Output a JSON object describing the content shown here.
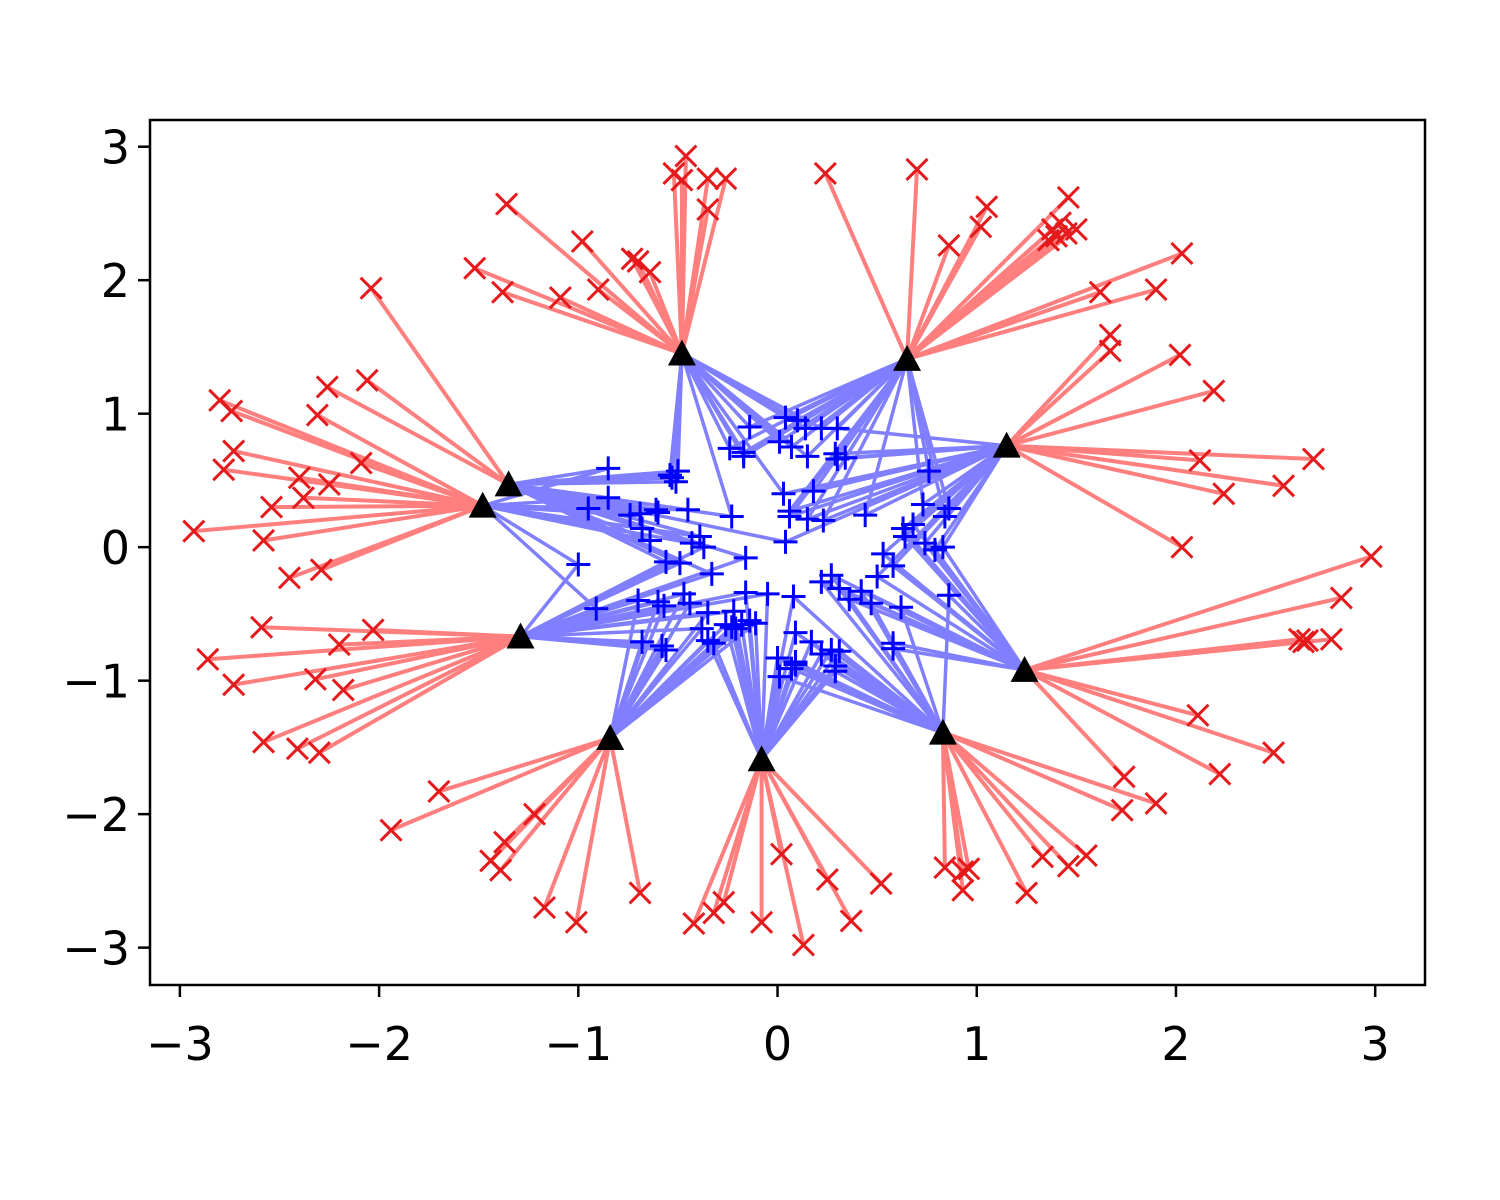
{
  "chart_data": {
    "type": "scatter",
    "title": "",
    "xlabel": "",
    "ylabel": "",
    "xlim": [
      -3.15,
      3.25
    ],
    "ylim": [
      -3.28,
      3.2
    ],
    "x_ticks": [
      -3,
      -2,
      -1,
      0,
      1,
      2,
      3
    ],
    "y_ticks": [
      -3,
      -2,
      -1,
      0,
      1,
      2,
      3
    ],
    "x_tick_labels": [
      "−3",
      "−2",
      "−1",
      "0",
      "1",
      "2",
      "3"
    ],
    "y_tick_labels": [
      "−3",
      "−2",
      "−1",
      "0",
      "1",
      "2",
      "3"
    ],
    "grid": false,
    "legend": "none",
    "colors": {
      "outer_marker": "#e41a1c",
      "outer_edge": "#ff7f7f",
      "inner_marker": "#0000ff",
      "inner_edge": "#7f7fff",
      "center_marker": "#000000"
    },
    "series": [
      {
        "marker": "triangle",
        "values": [
          [
            -0.48,
            1.45
          ],
          [
            0.65,
            1.41
          ],
          [
            1.15,
            0.76
          ],
          [
            1.24,
            -0.92
          ],
          [
            0.83,
            -1.39
          ],
          [
            -0.08,
            -1.59
          ],
          [
            -0.84,
            -1.43
          ],
          [
            -1.29,
            -0.67
          ],
          [
            -1.48,
            0.31
          ],
          [
            -1.35,
            0.47
          ]
        ]
      },
      {
        "marker": "x",
        "values": [
          [
            -0.46,
            2.93
          ],
          [
            -0.52,
            2.8
          ],
          [
            -0.48,
            2.75
          ],
          [
            -0.35,
            2.76
          ],
          [
            -0.26,
            2.76
          ],
          [
            -0.35,
            2.53
          ],
          [
            -0.7,
            2.14
          ],
          [
            -0.73,
            2.16
          ],
          [
            -0.64,
            2.06
          ],
          [
            -0.98,
            2.29
          ],
          [
            -0.9,
            1.93
          ],
          [
            -1.09,
            1.87
          ],
          [
            0.24,
            2.8
          ],
          [
            0.7,
            2.83
          ],
          [
            0.86,
            2.26
          ],
          [
            1.05,
            2.55
          ],
          [
            1.02,
            2.4
          ],
          [
            1.46,
            2.62
          ],
          [
            1.38,
            2.38
          ],
          [
            1.4,
            2.33
          ],
          [
            1.5,
            2.38
          ],
          [
            1.42,
            2.43
          ],
          [
            1.36,
            2.3
          ],
          [
            1.45,
            2.35
          ],
          [
            2.03,
            2.2
          ],
          [
            1.62,
            1.91
          ],
          [
            1.9,
            1.93
          ],
          [
            1.67,
            1.59
          ],
          [
            1.67,
            1.47
          ],
          [
            2.02,
            1.44
          ],
          [
            2.19,
            1.17
          ],
          [
            2.69,
            0.66
          ],
          [
            2.12,
            0.65
          ],
          [
            2.54,
            0.46
          ],
          [
            2.24,
            0.4
          ],
          [
            2.03,
            0.0
          ],
          [
            2.98,
            -0.07
          ],
          [
            2.83,
            -0.38
          ],
          [
            2.78,
            -0.69
          ],
          [
            2.64,
            -0.71
          ],
          [
            2.66,
            -0.7
          ],
          [
            2.62,
            -0.69
          ],
          [
            2.11,
            -1.26
          ],
          [
            2.49,
            -1.54
          ],
          [
            2.22,
            -1.7
          ],
          [
            1.74,
            -1.72
          ],
          [
            1.73,
            -1.97
          ],
          [
            1.9,
            -1.92
          ],
          [
            1.55,
            -2.31
          ],
          [
            1.46,
            -2.39
          ],
          [
            1.33,
            -2.32
          ],
          [
            1.25,
            -2.59
          ],
          [
            0.96,
            -2.41
          ],
          [
            0.93,
            -2.43
          ],
          [
            0.93,
            -2.57
          ],
          [
            0.84,
            -2.4
          ],
          [
            0.52,
            -2.52
          ],
          [
            0.37,
            -2.8
          ],
          [
            0.25,
            -2.49
          ],
          [
            0.13,
            -2.98
          ],
          [
            0.02,
            -2.3
          ],
          [
            -0.08,
            -2.81
          ],
          [
            -0.27,
            -2.66
          ],
          [
            -0.32,
            -2.74
          ],
          [
            -0.42,
            -2.82
          ],
          [
            -0.69,
            -2.59
          ],
          [
            -1.01,
            -2.81
          ],
          [
            -1.17,
            -2.7
          ],
          [
            -1.22,
            -2.0
          ],
          [
            -1.37,
            -2.21
          ],
          [
            -1.44,
            -2.35
          ],
          [
            -1.39,
            -2.42
          ],
          [
            -1.94,
            -2.12
          ],
          [
            -1.7,
            -1.83
          ],
          [
            -2.3,
            -1.54
          ],
          [
            -2.41,
            -1.51
          ],
          [
            -2.58,
            -1.46
          ],
          [
            -2.73,
            -1.03
          ],
          [
            -2.86,
            -0.84
          ],
          [
            -2.18,
            -1.07
          ],
          [
            -2.32,
            -0.99
          ],
          [
            -2.2,
            -0.73
          ],
          [
            -2.03,
            -0.62
          ],
          [
            -2.59,
            -0.6
          ],
          [
            -2.45,
            -0.23
          ],
          [
            -2.29,
            -0.17
          ],
          [
            -2.58,
            0.05
          ],
          [
            -2.93,
            0.12
          ],
          [
            -2.54,
            0.3
          ],
          [
            -2.38,
            0.37
          ],
          [
            -2.4,
            0.52
          ],
          [
            -2.25,
            0.47
          ],
          [
            -2.09,
            0.63
          ],
          [
            -2.78,
            0.58
          ],
          [
            -2.73,
            0.72
          ],
          [
            -2.74,
            1.02
          ],
          [
            -2.8,
            1.1
          ],
          [
            -2.31,
            0.99
          ],
          [
            -2.26,
            1.2
          ],
          [
            -2.06,
            1.25
          ],
          [
            -2.04,
            1.94
          ],
          [
            -1.52,
            2.09
          ],
          [
            -1.38,
            1.91
          ],
          [
            -1.36,
            2.57
          ]
        ]
      },
      {
        "marker": "plus",
        "values": [
          [
            0.04,
            0.97
          ],
          [
            0.1,
            0.95
          ],
          [
            0.14,
            0.89
          ],
          [
            0.22,
            0.89
          ],
          [
            0.3,
            0.89
          ],
          [
            -0.14,
            0.9
          ],
          [
            -0.24,
            0.74
          ],
          [
            -0.17,
            0.71
          ],
          [
            -0.17,
            0.68
          ],
          [
            0.01,
            0.79
          ],
          [
            0.07,
            0.75
          ],
          [
            0.15,
            0.68
          ],
          [
            0.29,
            0.7
          ],
          [
            0.3,
            0.66
          ],
          [
            0.34,
            0.67
          ],
          [
            -0.85,
            0.59
          ],
          [
            -0.54,
            0.54
          ],
          [
            -0.5,
            0.57
          ],
          [
            -0.51,
            0.49
          ],
          [
            -0.53,
            0.52
          ],
          [
            -0.85,
            0.37
          ],
          [
            -0.95,
            0.29
          ],
          [
            -0.74,
            0.24
          ],
          [
            -0.69,
            0.25
          ],
          [
            -0.61,
            0.28
          ],
          [
            -0.6,
            0.26
          ],
          [
            -0.45,
            0.28
          ],
          [
            -0.23,
            0.23
          ],
          [
            -0.68,
            0.14
          ],
          [
            -0.64,
            0.05
          ],
          [
            -0.43,
            0.03
          ],
          [
            -0.39,
            0.08
          ],
          [
            -0.37,
            0.0
          ],
          [
            -0.49,
            -0.12
          ],
          [
            -0.56,
            -0.11
          ],
          [
            -0.33,
            -0.2
          ],
          [
            -0.16,
            -0.08
          ],
          [
            0.03,
            0.4
          ],
          [
            0.18,
            0.42
          ],
          [
            0.06,
            0.23
          ],
          [
            0.06,
            0.27
          ],
          [
            0.15,
            0.21
          ],
          [
            0.23,
            0.2
          ],
          [
            0.44,
            0.24
          ],
          [
            0.04,
            0.04
          ],
          [
            0.76,
            0.57
          ],
          [
            0.73,
            0.32
          ],
          [
            0.86,
            0.29
          ],
          [
            0.84,
            0.23
          ],
          [
            0.68,
            0.17
          ],
          [
            0.63,
            0.14
          ],
          [
            0.64,
            0.08
          ],
          [
            0.74,
            0.03
          ],
          [
            0.79,
            -0.02
          ],
          [
            0.83,
            0.0
          ],
          [
            0.53,
            -0.05
          ],
          [
            0.58,
            -0.14
          ],
          [
            0.5,
            -0.22
          ],
          [
            0.42,
            -0.33
          ],
          [
            0.47,
            -0.42
          ],
          [
            0.62,
            -0.45
          ],
          [
            0.58,
            -0.72
          ],
          [
            0.58,
            -0.76
          ],
          [
            0.86,
            -0.36
          ],
          [
            0.27,
            -0.21
          ],
          [
            0.22,
            -0.26
          ],
          [
            0.31,
            -0.31
          ],
          [
            0.36,
            -0.39
          ],
          [
            0.08,
            -0.37
          ],
          [
            -0.05,
            -0.35
          ],
          [
            -1.0,
            -0.13
          ],
          [
            -0.91,
            -0.46
          ],
          [
            -0.7,
            -0.4
          ],
          [
            -0.6,
            -0.41
          ],
          [
            -0.57,
            -0.44
          ],
          [
            -0.47,
            -0.35
          ],
          [
            -0.44,
            -0.42
          ],
          [
            -0.35,
            -0.49
          ],
          [
            -0.16,
            -0.34
          ],
          [
            -0.22,
            -0.48
          ],
          [
            -0.38,
            -0.61
          ],
          [
            -0.26,
            -0.58
          ],
          [
            -0.21,
            -0.61
          ],
          [
            -0.18,
            -0.58
          ],
          [
            -0.14,
            -0.55
          ],
          [
            -0.11,
            -0.57
          ],
          [
            -0.68,
            -0.71
          ],
          [
            -0.58,
            -0.74
          ],
          [
            -0.56,
            -0.77
          ],
          [
            -0.35,
            -0.7
          ],
          [
            -0.32,
            -0.72
          ],
          [
            -0.23,
            -0.6
          ],
          [
            0.09,
            -0.64
          ],
          [
            0.17,
            -0.71
          ],
          [
            0.27,
            -0.77
          ],
          [
            0.31,
            -0.78
          ],
          [
            0.22,
            -0.8
          ],
          [
            0.0,
            -0.83
          ],
          [
            0.09,
            -0.86
          ],
          [
            0.29,
            -0.89
          ],
          [
            0.07,
            -0.91
          ],
          [
            0.09,
            -0.88
          ],
          [
            0.01,
            -0.97
          ],
          [
            0.29,
            -0.93
          ]
        ]
      }
    ]
  }
}
